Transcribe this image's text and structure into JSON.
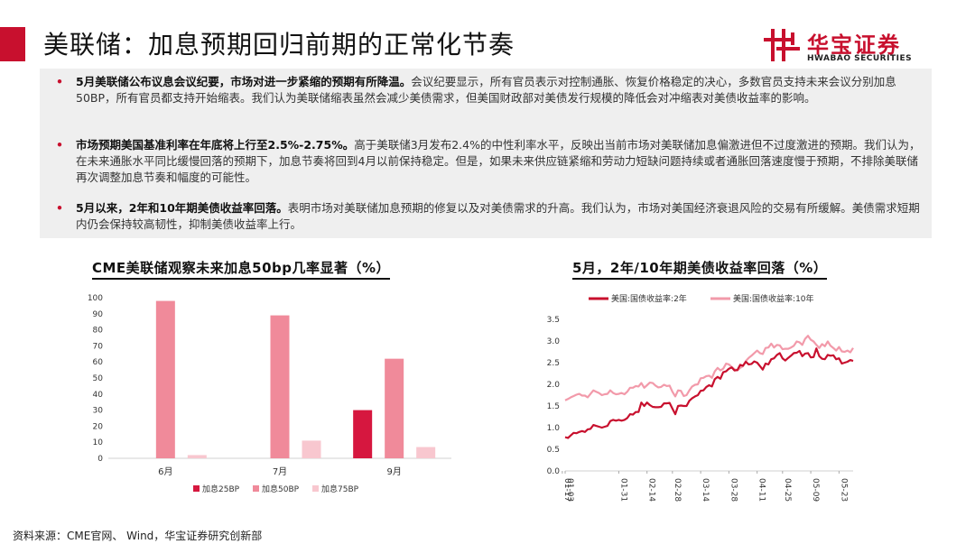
{
  "page": {
    "title": "美联储：加息预期回归前期的正常化节奏",
    "logo_cn": "华宝证券",
    "logo_en": "HWABAO SECURITIES",
    "source": "资料来源：CME官网、 Wind，华宝证券研究创新部"
  },
  "bullets": [
    {
      "bold": "5月美联储公布议息会议纪要，市场对进一步紧缩的预期有所降温。",
      "text": "会议纪要显示，所有官员表示对控制通胀、恢复价格稳定的决心，多数官员支持未来会议分别加息50BP，所有官员都支持开始缩表。我们认为美联储缩表虽然会减少美债需求，但美国财政部对美债发行规模的降低会对冲缩表对美债收益率的影响。"
    },
    {
      "bold": "市场预期美国基准利率在年底将上行至2.5%-2.75%。",
      "text": "高于美联储3月发布2.4%的中性利率水平，反映出当前市场对美联储加息偏激进但不过度激进的预期。我们认为，在未来通胀水平同比缓慢回落的预期下，加息节奏将回到4月以前保持稳定。但是，如果未来供应链紧缩和劳动力短缺问题持续或者通胀回落速度慢于预期，不排除美联储再次调整加息节奏和幅度的可能性。"
    },
    {
      "bold": "5月以来，2年和10年期美债收益率回落。",
      "text": "表明市场对美联储加息预期的修复以及对美债需求的升高。我们认为，市场对美国经济衰退风险的交易有所缓解。美债需求短期内仍会保持较高韧性，抑制美债收益率上行。"
    }
  ],
  "chart_data": [
    {
      "type": "bar",
      "title": "CME美联储观察未来加息50bp几率显著（%）",
      "categories": [
        "6月",
        "7月",
        "9月"
      ],
      "ylim": [
        0,
        100
      ],
      "yticks": [
        0,
        10,
        20,
        30,
        40,
        50,
        60,
        70,
        80,
        90,
        100
      ],
      "series": [
        {
          "name": "加息25BP",
          "color": "#d6173f",
          "values": [
            0,
            0,
            30
          ]
        },
        {
          "name": "加息50BP",
          "color": "#f08a9a",
          "values": [
            98,
            89,
            62
          ]
        },
        {
          "name": "加息75BP",
          "color": "#f8c7cf",
          "values": [
            2,
            11,
            7
          ]
        }
      ]
    },
    {
      "type": "line",
      "title": "5月，2年/10年期美债收益率回落（%）",
      "ylim": [
        0,
        3.5
      ],
      "yticks": [
        0.0,
        0.5,
        1.0,
        1.5,
        2.0,
        2.5,
        3.0,
        3.5
      ],
      "x": [
        "01-03",
        "01-04",
        "01-05",
        "01-06",
        "01-07",
        "01-10",
        "01-11",
        "01-12",
        "01-13",
        "01-14",
        "01-18",
        "01-19",
        "01-20",
        "01-21",
        "01-24",
        "01-25",
        "01-26",
        "01-27",
        "01-28",
        "01-31",
        "02-01",
        "02-02",
        "02-03",
        "02-04",
        "02-07",
        "02-08",
        "02-09",
        "02-10",
        "02-11",
        "02-14",
        "02-15",
        "02-16",
        "02-17",
        "02-18",
        "02-22",
        "02-23",
        "02-24",
        "02-25",
        "02-28",
        "03-01",
        "03-02",
        "03-03",
        "03-04",
        "03-07",
        "03-08",
        "03-09",
        "03-10",
        "03-11",
        "03-14",
        "03-15",
        "03-16",
        "03-17",
        "03-18",
        "03-21",
        "03-22",
        "03-23",
        "03-24",
        "03-25",
        "03-28",
        "03-29",
        "03-30",
        "03-31",
        "04-01",
        "04-04",
        "04-05",
        "04-06",
        "04-07",
        "04-08",
        "04-11",
        "04-12",
        "04-13",
        "04-14",
        "04-18",
        "04-19",
        "04-20",
        "04-21",
        "04-22",
        "04-25",
        "04-26",
        "04-27",
        "04-28",
        "04-29",
        "05-02",
        "05-03",
        "05-04",
        "05-05",
        "05-06",
        "05-09",
        "05-10",
        "05-11",
        "05-12",
        "05-13",
        "05-16",
        "05-17",
        "05-18",
        "05-19",
        "05-20",
        "05-23",
        "05-24",
        "05-25",
        "05-26",
        "05-27",
        "05-31"
      ],
      "xticks": [
        "01-03",
        "01-17",
        "01-31",
        "02-14",
        "02-28",
        "03-14",
        "03-28",
        "04-11",
        "04-25",
        "05-09",
        "05-23"
      ],
      "series": [
        {
          "name": "美国:国债收益率:2年",
          "color": "#c8102e",
          "values": [
            0.78,
            0.76,
            0.82,
            0.88,
            0.87,
            0.9,
            0.92,
            0.9,
            0.96,
            0.97,
            1.06,
            1.04,
            1.02,
            1.0,
            1.02,
            1.04,
            1.15,
            1.18,
            1.16,
            1.18,
            1.16,
            1.18,
            1.22,
            1.31,
            1.3,
            1.36,
            1.36,
            1.58,
            1.5,
            1.58,
            1.52,
            1.48,
            1.47,
            1.47,
            1.48,
            1.56,
            1.56,
            1.57,
            1.44,
            1.31,
            1.5,
            1.51,
            1.5,
            1.5,
            1.62,
            1.68,
            1.72,
            1.75,
            1.85,
            1.86,
            1.94,
            1.98,
            1.95,
            2.12,
            2.17,
            2.13,
            2.28,
            2.3,
            2.36,
            2.39,
            2.32,
            2.33,
            2.45,
            2.43,
            2.52,
            2.46,
            2.47,
            2.53,
            2.5,
            2.42,
            2.34,
            2.48,
            2.46,
            2.58,
            2.6,
            2.68,
            2.72,
            2.6,
            2.55,
            2.61,
            2.66,
            2.72,
            2.73,
            2.77,
            2.65,
            2.71,
            2.72,
            2.62,
            2.63,
            2.83,
            2.65,
            2.59,
            2.58,
            2.68,
            2.66,
            2.67,
            2.58,
            2.6,
            2.48,
            2.5,
            2.52,
            2.56,
            2.54
          ]
        },
        {
          "name": "美国:国债收益率:10年",
          "color": "#f29aaa",
          "values": [
            1.63,
            1.66,
            1.7,
            1.73,
            1.76,
            1.78,
            1.74,
            1.74,
            1.7,
            1.78,
            1.86,
            1.83,
            1.8,
            1.75,
            1.77,
            1.78,
            1.86,
            1.8,
            1.77,
            1.78,
            1.8,
            1.77,
            1.83,
            1.92,
            1.92,
            1.96,
            1.95,
            2.03,
            1.92,
            1.98,
            2.04,
            2.03,
            1.97,
            1.93,
            1.94,
            1.99,
            1.96,
            1.97,
            1.83,
            1.72,
            1.86,
            1.85,
            1.73,
            1.75,
            1.86,
            1.95,
            1.99,
            2.0,
            2.14,
            2.15,
            2.19,
            2.2,
            2.15,
            2.3,
            2.38,
            2.32,
            2.36,
            2.48,
            2.46,
            2.4,
            2.35,
            2.32,
            2.38,
            2.42,
            2.54,
            2.61,
            2.66,
            2.72,
            2.78,
            2.72,
            2.7,
            2.84,
            2.85,
            2.94,
            2.85,
            2.91,
            2.9,
            2.81,
            2.82,
            2.82,
            2.85,
            2.89,
            2.99,
            2.97,
            2.91,
            3.05,
            3.12,
            3.03,
            2.99,
            2.91,
            2.84,
            2.93,
            2.88,
            2.99,
            2.89,
            2.84,
            2.78,
            2.86,
            2.76,
            2.75,
            2.78,
            2.74,
            2.84
          ]
        }
      ]
    }
  ]
}
